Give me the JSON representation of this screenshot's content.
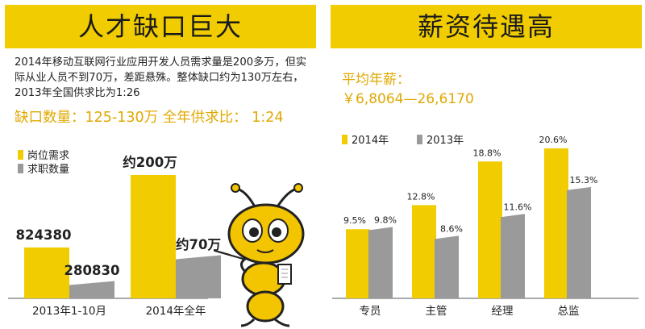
{
  "left": {
    "title": "人才缺口巨大",
    "intro": "2014年移动互联网行业应用开发人员需求量是200多万，但实际从业人员不到70万，差距悬殊。整体缺口约为130万左右，2013年全国供求比为1:26",
    "gap_line": "缺口数量：125-130万  全年供求比： 1:24"
  },
  "right": {
    "title": "薪资待遇高",
    "salary_label": "平均年薪：",
    "salary_range": "￥6,8064—26,6170"
  },
  "colors": {
    "yellow": "#f0cc00",
    "gray": "#9a9a9a",
    "accent_text": "#e0a800"
  },
  "chart_data": [
    {
      "type": "bar",
      "title": "",
      "categories": [
        "2013年1-10月",
        "2014年全年"
      ],
      "series": [
        {
          "name": "岗位需求",
          "color": "#f0cc00",
          "values": [
            824380,
            2000000
          ],
          "labels": [
            "824380",
            "约200万"
          ]
        },
        {
          "name": "求职数量",
          "color": "#9a9a9a",
          "values": [
            280830,
            700000
          ],
          "labels": [
            "280830",
            "约70万"
          ]
        }
      ],
      "legend": "top-left",
      "grid": false
    },
    {
      "type": "bar",
      "title": "",
      "categories": [
        "专员",
        "主管",
        "经理",
        "总监"
      ],
      "series": [
        {
          "name": "2014年",
          "color": "#f0cc00",
          "values": [
            9.5,
            12.8,
            18.8,
            20.6
          ],
          "labels": [
            "9.5%",
            "12.8%",
            "18.8%",
            "20.6%"
          ]
        },
        {
          "name": "2013年",
          "color": "#9a9a9a",
          "values": [
            9.8,
            8.6,
            11.6,
            15.3
          ],
          "labels": [
            "9.8%",
            "8.6%",
            "11.6%",
            "15.3%"
          ]
        }
      ],
      "legend": "top-left",
      "grid": false
    }
  ]
}
